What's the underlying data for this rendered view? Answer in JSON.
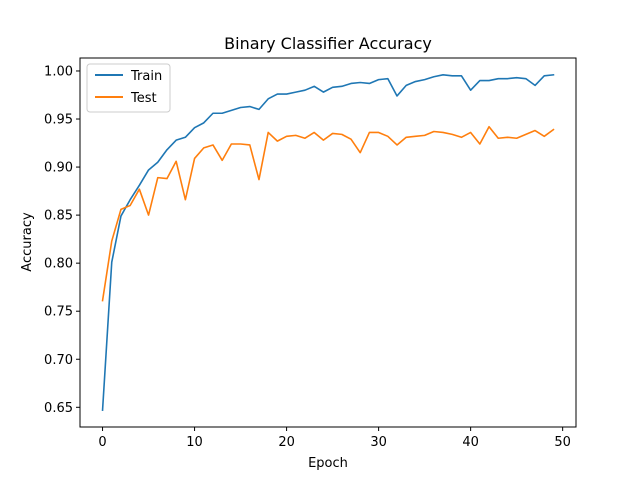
{
  "chart_data": {
    "type": "line",
    "title": "Binary Classifier Accuracy",
    "xlabel": "Epoch",
    "ylabel": "Accuracy",
    "xlim": [
      -2.45,
      51.45
    ],
    "ylim": [
      0.6295,
      1.0135
    ],
    "xticks": [
      0,
      10,
      20,
      30,
      40,
      50
    ],
    "yticks": [
      0.65,
      0.7,
      0.75,
      0.8,
      0.85,
      0.9,
      0.95,
      1.0
    ],
    "ytick_labels": [
      "0.65",
      "0.70",
      "0.75",
      "0.80",
      "0.85",
      "0.90",
      "0.95",
      "1.00"
    ],
    "grid": false,
    "legend_position": "top-left",
    "x": [
      0,
      1,
      2,
      3,
      4,
      5,
      6,
      7,
      8,
      9,
      10,
      11,
      12,
      13,
      14,
      15,
      16,
      17,
      18,
      19,
      20,
      21,
      22,
      23,
      24,
      25,
      26,
      27,
      28,
      29,
      30,
      31,
      32,
      33,
      34,
      35,
      36,
      37,
      38,
      39,
      40,
      41,
      42,
      43,
      44,
      45,
      46,
      47,
      48,
      49
    ],
    "series": [
      {
        "name": "Train",
        "color": "#1f77b4",
        "values": [
          0.647,
          0.801,
          0.849,
          0.866,
          0.881,
          0.897,
          0.905,
          0.918,
          0.928,
          0.931,
          0.941,
          0.946,
          0.956,
          0.956,
          0.959,
          0.962,
          0.963,
          0.96,
          0.971,
          0.976,
          0.976,
          0.978,
          0.98,
          0.984,
          0.978,
          0.983,
          0.984,
          0.987,
          0.988,
          0.987,
          0.991,
          0.992,
          0.974,
          0.985,
          0.989,
          0.991,
          0.994,
          0.996,
          0.995,
          0.995,
          0.98,
          0.99,
          0.99,
          0.992,
          0.992,
          0.993,
          0.992,
          0.985,
          0.995,
          0.996
        ]
      },
      {
        "name": "Test",
        "color": "#ff7f0e",
        "values": [
          0.761,
          0.823,
          0.856,
          0.86,
          0.877,
          0.85,
          0.889,
          0.888,
          0.906,
          0.866,
          0.909,
          0.92,
          0.923,
          0.907,
          0.924,
          0.924,
          0.923,
          0.887,
          0.936,
          0.927,
          0.932,
          0.933,
          0.93,
          0.936,
          0.928,
          0.935,
          0.934,
          0.929,
          0.915,
          0.936,
          0.936,
          0.932,
          0.923,
          0.931,
          0.932,
          0.933,
          0.937,
          0.936,
          0.934,
          0.931,
          0.936,
          0.924,
          0.942,
          0.93,
          0.931,
          0.93,
          0.934,
          0.938,
          0.932,
          0.939
        ]
      }
    ]
  }
}
